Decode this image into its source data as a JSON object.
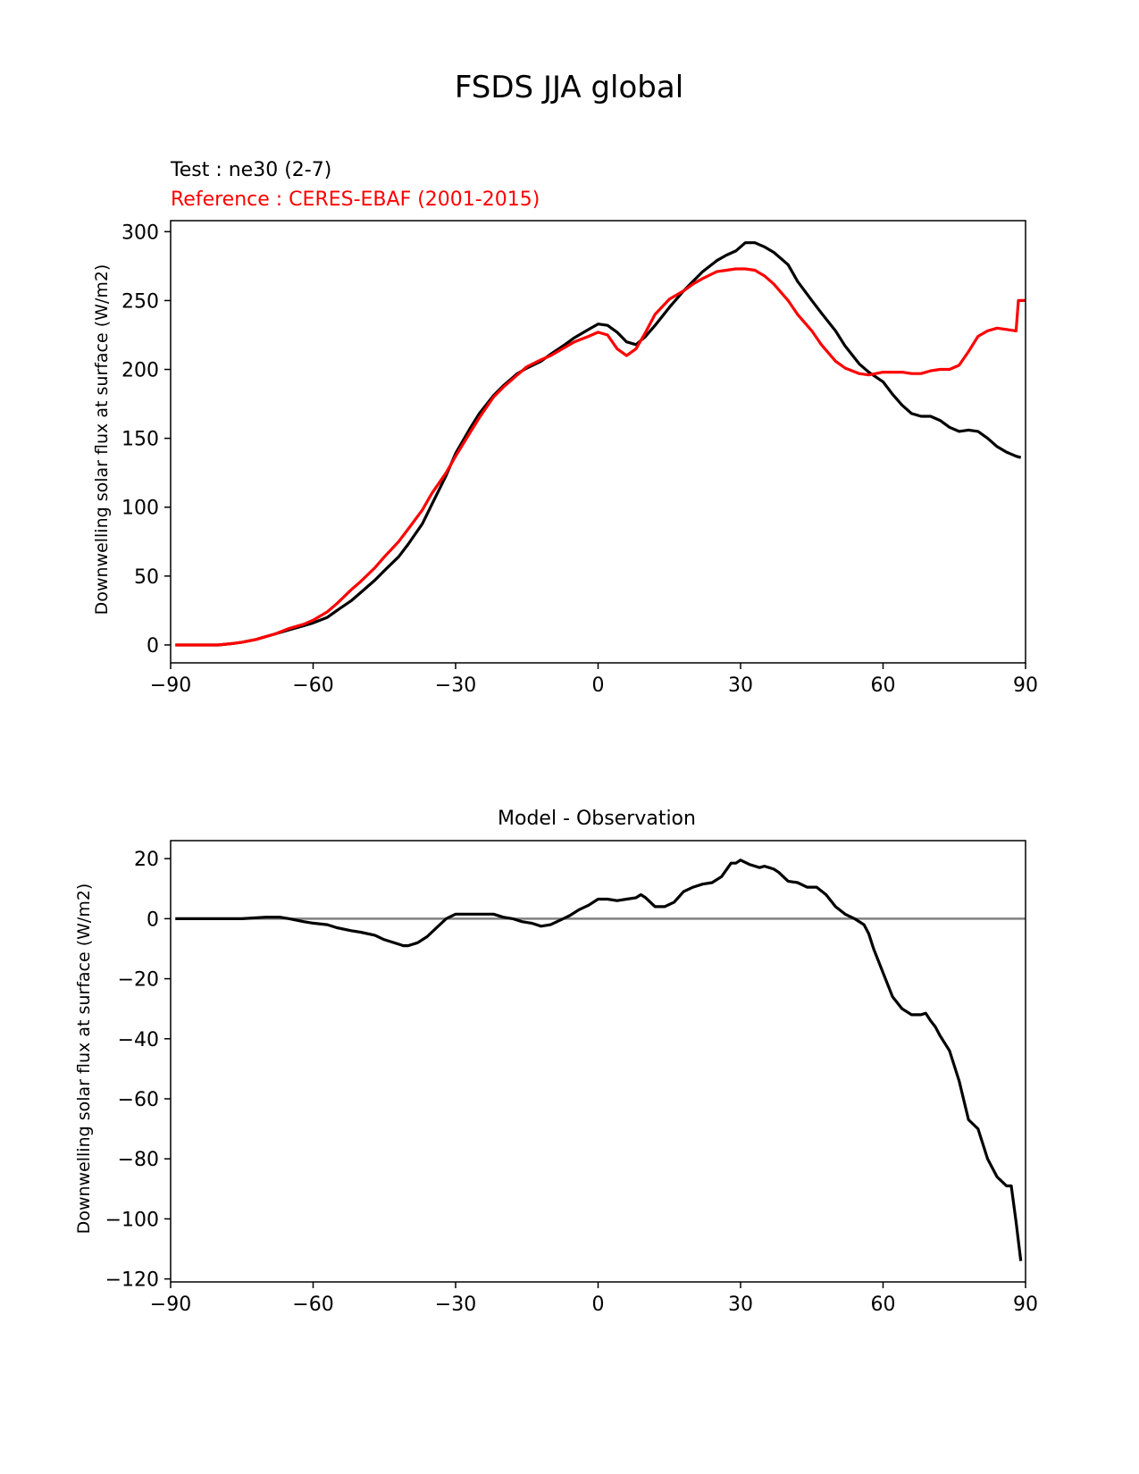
{
  "figure": {
    "title": "FSDS JJA global"
  },
  "chart_data": [
    {
      "type": "line",
      "test_label": "Test : ne30 (2-7)",
      "reference_label": "Reference : CERES-EBAF (2001-2015)",
      "xlabel": "",
      "ylabel": "Downwelling solar flux at surface (W/m2)",
      "xlim": [
        -90,
        90
      ],
      "ylim": [
        -13,
        308
      ],
      "xticks": [
        -90,
        -60,
        -30,
        0,
        30,
        60,
        90
      ],
      "xtick_labels": [
        "−90",
        "−60",
        "−30",
        "0",
        "30",
        "60",
        "90"
      ],
      "yticks": [
        0,
        50,
        100,
        150,
        200,
        250,
        300
      ],
      "ytick_labels": [
        "0",
        "50",
        "100",
        "150",
        "200",
        "250",
        "300"
      ],
      "grid": false,
      "series": [
        {
          "color": "#000000",
          "x": [
            -89,
            -85,
            -80,
            -77,
            -75,
            -72,
            -70,
            -68,
            -65,
            -62,
            -60,
            -57,
            -55,
            -52,
            -50,
            -47,
            -45,
            -42,
            -40,
            -37,
            -35,
            -32,
            -30,
            -27,
            -25,
            -22,
            -20,
            -17,
            -15,
            -12,
            -10,
            -7,
            -5,
            -2,
            0,
            2,
            4,
            6,
            8,
            10,
            12,
            15,
            18,
            20,
            22,
            25,
            27,
            29,
            31,
            33,
            35,
            37,
            38,
            40,
            42,
            45,
            47,
            50,
            52,
            55,
            57,
            60,
            62,
            64,
            66,
            68,
            70,
            72,
            74,
            76,
            78,
            80,
            82,
            84,
            86,
            88,
            89
          ],
          "y": [
            0,
            0,
            0,
            1,
            2,
            4,
            6,
            8,
            11,
            14,
            16,
            20,
            25,
            32,
            38,
            47,
            54,
            64,
            73,
            88,
            102,
            123,
            139,
            157,
            168,
            181,
            188,
            197,
            201,
            206,
            211,
            218,
            223,
            229,
            233,
            232,
            227,
            220,
            218,
            224,
            232,
            245,
            257,
            264,
            271,
            279,
            283,
            286,
            292,
            292,
            289,
            285,
            282,
            276,
            264,
            250,
            241,
            228,
            217,
            204,
            198,
            191,
            182,
            174,
            168,
            166,
            166,
            163,
            158,
            155,
            156,
            155,
            150,
            144,
            140,
            137,
            136
          ]
        },
        {
          "color": "#ff0000",
          "x": [
            -89,
            -85,
            -80,
            -77,
            -75,
            -72,
            -70,
            -68,
            -65,
            -62,
            -60,
            -57,
            -55,
            -52,
            -50,
            -47,
            -45,
            -42,
            -40,
            -37,
            -35,
            -32,
            -30,
            -27,
            -25,
            -22,
            -20,
            -17,
            -15,
            -12,
            -10,
            -7,
            -5,
            -2,
            0,
            2,
            4,
            6,
            8,
            10,
            12,
            15,
            18,
            20,
            22,
            25,
            27,
            29,
            31,
            33,
            35,
            37,
            38,
            40,
            42,
            45,
            47,
            50,
            52,
            55,
            57,
            60,
            62,
            64,
            66,
            68,
            70,
            72,
            74,
            76,
            78,
            80,
            82,
            84,
            86,
            88,
            88.5,
            89,
            90
          ],
          "y": [
            0,
            0,
            0,
            1,
            2,
            4,
            6,
            8,
            12,
            15,
            18,
            24,
            30,
            40,
            46,
            56,
            64,
            75,
            84,
            98,
            110,
            125,
            137,
            154,
            165,
            180,
            187,
            196,
            202,
            207,
            210,
            216,
            220,
            224,
            227,
            225,
            215,
            210,
            215,
            227,
            240,
            251,
            257,
            262,
            266,
            271,
            272,
            273,
            273,
            272,
            268,
            262,
            258,
            250,
            240,
            228,
            218,
            206,
            201,
            197,
            196,
            198,
            198,
            198,
            197,
            197,
            199,
            200,
            200,
            203,
            213,
            224,
            228,
            230,
            229,
            228,
            250,
            250,
            250
          ]
        }
      ]
    },
    {
      "type": "line",
      "title": "Model - Observation",
      "xlabel": "",
      "ylabel": "Downwelling solar flux at surface (W/m2)",
      "xlim": [
        -90,
        90
      ],
      "ylim": [
        -121,
        26
      ],
      "xticks": [
        -90,
        -60,
        -30,
        0,
        30,
        60,
        90
      ],
      "xtick_labels": [
        "−90",
        "−60",
        "−30",
        "0",
        "30",
        "60",
        "90"
      ],
      "yticks": [
        -120,
        -100,
        -80,
        -60,
        -40,
        -20,
        0,
        20
      ],
      "ytick_labels": [
        "−120",
        "−100",
        "−80",
        "−60",
        "−40",
        "−20",
        "0",
        "20"
      ],
      "grid": false,
      "zero_line": {
        "y": 0,
        "color": "#808080"
      },
      "series": [
        {
          "color": "#000000",
          "x": [
            -89,
            -80,
            -75,
            -70,
            -67,
            -65,
            -62,
            -60,
            -57,
            -55,
            -52,
            -50,
            -47,
            -45,
            -42,
            -41,
            -40,
            -38,
            -36,
            -34,
            -32,
            -30,
            -28,
            -26,
            -24,
            -22,
            -20,
            -18,
            -16,
            -14,
            -12,
            -10,
            -8,
            -6,
            -4,
            -2,
            0,
            2,
            4,
            6,
            8,
            9,
            10,
            12,
            14,
            16,
            18,
            20,
            22,
            24,
            26,
            28,
            29,
            30,
            32,
            34,
            35,
            36,
            37,
            38,
            40,
            42,
            44,
            46,
            48,
            50,
            52,
            54,
            56,
            57,
            58,
            60,
            62,
            64,
            66,
            68,
            69,
            70,
            71,
            72,
            74,
            76,
            78,
            80,
            82,
            84,
            86,
            87,
            88,
            89
          ],
          "y": [
            0,
            0,
            0,
            0.5,
            0.5,
            0,
            -1,
            -1.5,
            -2,
            -3,
            -4,
            -4.5,
            -5.5,
            -7,
            -8.5,
            -9,
            -9,
            -8,
            -6,
            -3,
            0,
            1.5,
            1.5,
            1.5,
            1.5,
            1.5,
            0.5,
            0,
            -1,
            -1.5,
            -2.5,
            -2,
            -0.5,
            1,
            3,
            4.5,
            6.5,
            6.5,
            6,
            6.5,
            7,
            8,
            7,
            4,
            4,
            5.5,
            9,
            10.5,
            11.5,
            12,
            14,
            18.5,
            18.5,
            19.5,
            18,
            17,
            17.5,
            17,
            16.5,
            15.5,
            12.5,
            12,
            10.5,
            10.5,
            8,
            4,
            1.5,
            0,
            -2,
            -5,
            -10,
            -18,
            -26,
            -30,
            -32,
            -32,
            -31.5,
            -34,
            -36,
            -39,
            -44,
            -54,
            -67,
            -70,
            -80,
            -86,
            -89,
            -89,
            -101,
            -114
          ]
        }
      ]
    }
  ]
}
